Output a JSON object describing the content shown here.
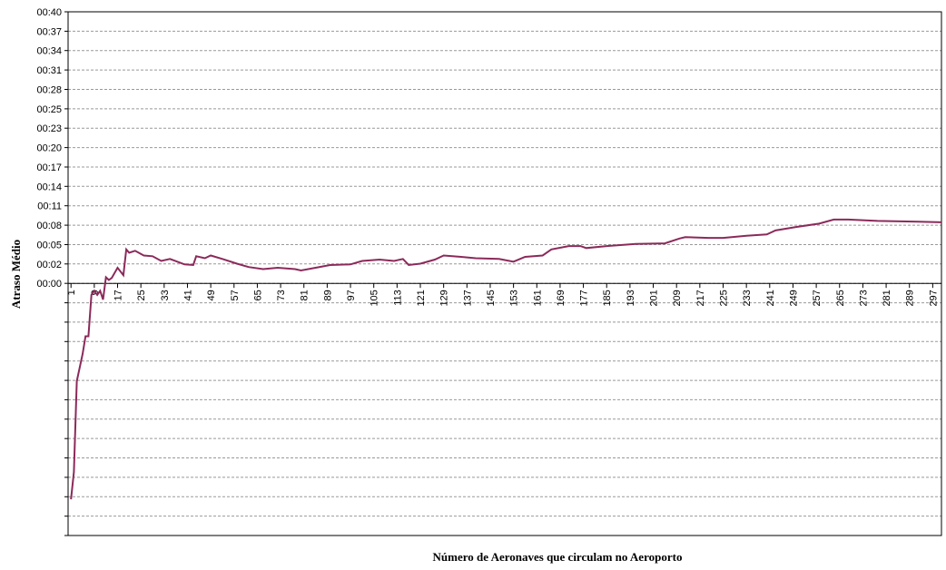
{
  "chart_data": {
    "type": "line",
    "y_label": "Atraso Médio",
    "x_label": "Número de Aeronaves que circulam  no Aeroporto",
    "xlim": [
      0,
      300
    ],
    "xticks": [
      1,
      9,
      17,
      25,
      33,
      41,
      49,
      57,
      65,
      73,
      81,
      89,
      97,
      105,
      113,
      121,
      129,
      137,
      145,
      153,
      161,
      169,
      177,
      185,
      193,
      201,
      209,
      217,
      225,
      233,
      241,
      249,
      257,
      265,
      273,
      281,
      289,
      297
    ],
    "ylim": [
      -37.14,
      40
    ],
    "yticks": [
      {
        "value": 0,
        "label": "00:00"
      },
      {
        "value": 2.86,
        "label": "00:02"
      },
      {
        "value": 5.71,
        "label": "00:05"
      },
      {
        "value": 8.57,
        "label": "00:08"
      },
      {
        "value": 11.43,
        "label": "00:11"
      },
      {
        "value": 14.29,
        "label": "00:14"
      },
      {
        "value": 17.14,
        "label": "00:17"
      },
      {
        "value": 20,
        "label": "00:20"
      },
      {
        "value": 22.86,
        "label": "00:23"
      },
      {
        "value": 25.71,
        "label": "00:25"
      },
      {
        "value": 28.57,
        "label": "00:28"
      },
      {
        "value": 31.43,
        "label": "00:31"
      },
      {
        "value": 34.29,
        "label": "00:34"
      },
      {
        "value": 37.14,
        "label": "00:37"
      },
      {
        "value": 40,
        "label": "00:40"
      }
    ],
    "yticks_unlabeled": [
      -2.86,
      -5.71,
      -8.57,
      -11.43,
      -14.29,
      -17.14,
      -20,
      -22.86,
      -25.71,
      -28.57,
      -31.43,
      -34.29,
      -37.14
    ],
    "grid": true,
    "series": [
      {
        "color": "#8b2a5a",
        "x": [
          1,
          2,
          3,
          5,
          6,
          7,
          8,
          9,
          10,
          11,
          12,
          13,
          14,
          15,
          17,
          19,
          20,
          21,
          23,
          26,
          29,
          32,
          35,
          40,
          43,
          44,
          47,
          49,
          53,
          58,
          62,
          67,
          72,
          78,
          80,
          85,
          90,
          97,
          101,
          107,
          112,
          115,
          117,
          121,
          126,
          129,
          135,
          140,
          148,
          153,
          157,
          163,
          166,
          172,
          176,
          178,
          185,
          195,
          205,
          210,
          212,
          220,
          225,
          233,
          240,
          243,
          250,
          258,
          263,
          268,
          278,
          290,
          300
        ],
        "values": [
          -31.8,
          -27.8,
          -14.4,
          -10.4,
          -7.8,
          -7.8,
          -1.7,
          -1.1,
          -1.7,
          -1.1,
          -2.4,
          0.9,
          0.5,
          0.8,
          2.3,
          1.2,
          5.0,
          4.5,
          4.8,
          4.1,
          4.0,
          3.3,
          3.6,
          2.8,
          2.7,
          4.0,
          3.7,
          4.1,
          3.6,
          2.9,
          2.4,
          2.1,
          2.3,
          2.1,
          1.9,
          2.3,
          2.7,
          2.8,
          3.3,
          3.5,
          3.3,
          3.6,
          2.7,
          2.9,
          3.5,
          4.1,
          3.9,
          3.7,
          3.6,
          3.2,
          3.9,
          4.1,
          5.0,
          5.5,
          5.5,
          5.2,
          5.5,
          5.8,
          5.9,
          6.6,
          6.8,
          6.7,
          6.7,
          7.0,
          7.2,
          7.8,
          8.3,
          8.8,
          9.4,
          9.4,
          9.2,
          9.1,
          9.0
        ]
      }
    ]
  }
}
